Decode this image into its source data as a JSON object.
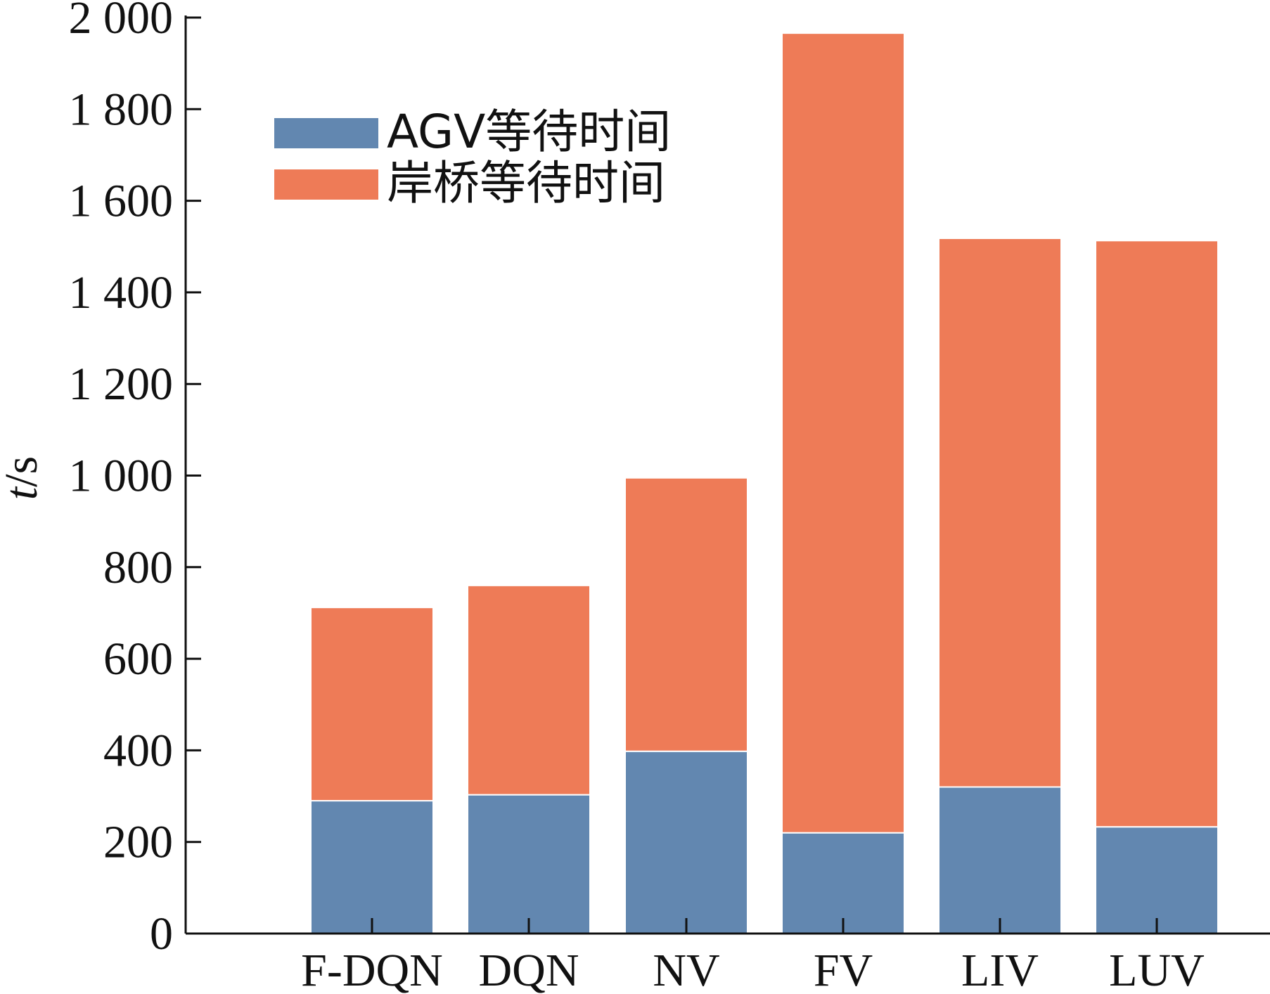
{
  "chart_data": {
    "type": "bar",
    "stacked": true,
    "categories": [
      "F-DQN",
      "DQN",
      "NV",
      "FV",
      "LIV",
      "LUV"
    ],
    "series": [
      {
        "name": "AGV等待时间",
        "color": "#6287b0",
        "values": [
          290,
          303,
          398,
          220,
          320,
          233
        ]
      },
      {
        "name": "岸桥等待时间",
        "color": "#ee7b57",
        "values": [
          422,
          457,
          597,
          1746,
          1198,
          1280
        ]
      }
    ],
    "ylabel": {
      "var": "t",
      "unit": "/s"
    },
    "ylim": [
      0,
      2000
    ],
    "yticks": [
      "0",
      "200",
      "400",
      "600",
      "800",
      "1 000",
      "1 200",
      "1 400",
      "1 600",
      "1 800",
      "2 000"
    ],
    "legend_position": "top-left",
    "grid": false
  }
}
